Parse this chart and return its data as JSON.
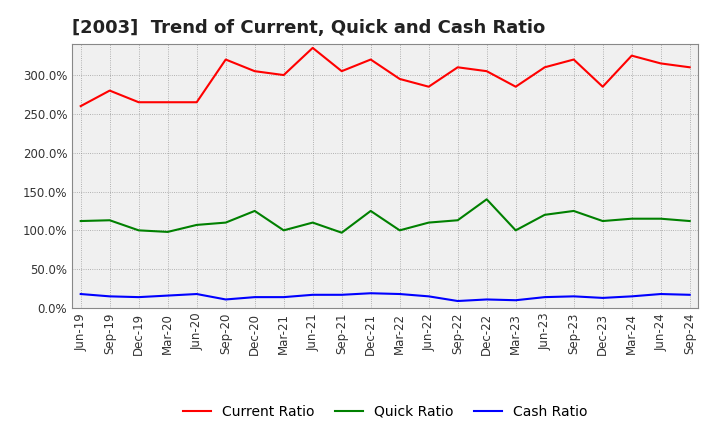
{
  "title": "[2003]  Trend of Current, Quick and Cash Ratio",
  "labels": [
    "Jun-19",
    "Sep-19",
    "Dec-19",
    "Mar-20",
    "Jun-20",
    "Sep-20",
    "Dec-20",
    "Mar-21",
    "Jun-21",
    "Sep-21",
    "Dec-21",
    "Mar-22",
    "Jun-22",
    "Sep-22",
    "Dec-22",
    "Mar-23",
    "Jun-23",
    "Sep-23",
    "Dec-23",
    "Mar-24",
    "Jun-24",
    "Sep-24"
  ],
  "current_ratio": [
    260,
    280,
    265,
    265,
    265,
    320,
    305,
    300,
    335,
    305,
    320,
    295,
    285,
    310,
    305,
    285,
    310,
    320,
    285,
    325,
    315,
    310
  ],
  "quick_ratio": [
    112,
    113,
    100,
    98,
    107,
    110,
    125,
    100,
    110,
    97,
    125,
    100,
    110,
    113,
    140,
    100,
    120,
    125,
    112,
    115,
    115,
    112
  ],
  "cash_ratio": [
    18,
    15,
    14,
    16,
    18,
    11,
    14,
    14,
    17,
    17,
    19,
    18,
    15,
    9,
    11,
    10,
    14,
    15,
    13,
    15,
    18,
    17
  ],
  "current_color": "#ff0000",
  "quick_color": "#008000",
  "cash_color": "#0000ff",
  "ylim": [
    0,
    340
  ],
  "yticks": [
    0,
    50,
    100,
    150,
    200,
    250,
    300
  ],
  "background_color": "#ffffff",
  "plot_bg_color": "#f0f0f0",
  "grid_color": "#888888",
  "title_fontsize": 13,
  "legend_fontsize": 10,
  "axis_fontsize": 8.5
}
